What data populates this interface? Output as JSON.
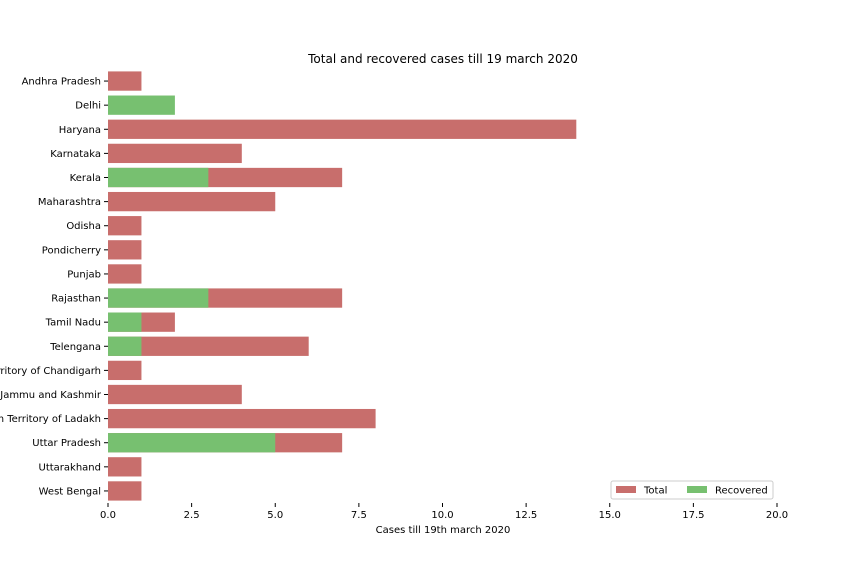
{
  "chart_data": {
    "type": "bar",
    "orientation": "horizontal",
    "stacking": "overlay",
    "title": "Total and recovered cases till 19 march 2020",
    "xlabel": "Cases till 19th march 2020",
    "ylabel": "",
    "xlim": [
      0,
      20
    ],
    "xticks": [
      "0.0",
      "2.5",
      "5.0",
      "7.5",
      "10.0",
      "12.5",
      "15.0",
      "17.5",
      "20.0"
    ],
    "grid": false,
    "legend_position": "bottom-right",
    "categories": [
      "Andhra Pradesh",
      "Delhi",
      "Haryana",
      "Karnataka",
      "Kerala",
      "Maharashtra",
      "Odisha",
      "Pondicherry",
      "Punjab",
      "Rajasthan",
      "Tamil Nadu",
      "Telengana",
      "Union Territory of Chandigarh",
      "Union Territory of Jammu and Kashmir",
      "Union Territory of Ladakh",
      "Uttar Pradesh",
      "Uttarakhand",
      "West Bengal"
    ],
    "series": [
      {
        "name": "Total",
        "color": "#c86e6c",
        "values": [
          1,
          0,
          14,
          4,
          7,
          5,
          1,
          1,
          1,
          7,
          2,
          6,
          1,
          4,
          8,
          7,
          1,
          1
        ]
      },
      {
        "name": "Recovered",
        "color": "#77c070",
        "values": [
          0,
          2,
          0,
          0,
          3,
          0,
          0,
          0,
          0,
          3,
          1,
          1,
          0,
          0,
          0,
          5,
          0,
          0
        ]
      }
    ]
  }
}
